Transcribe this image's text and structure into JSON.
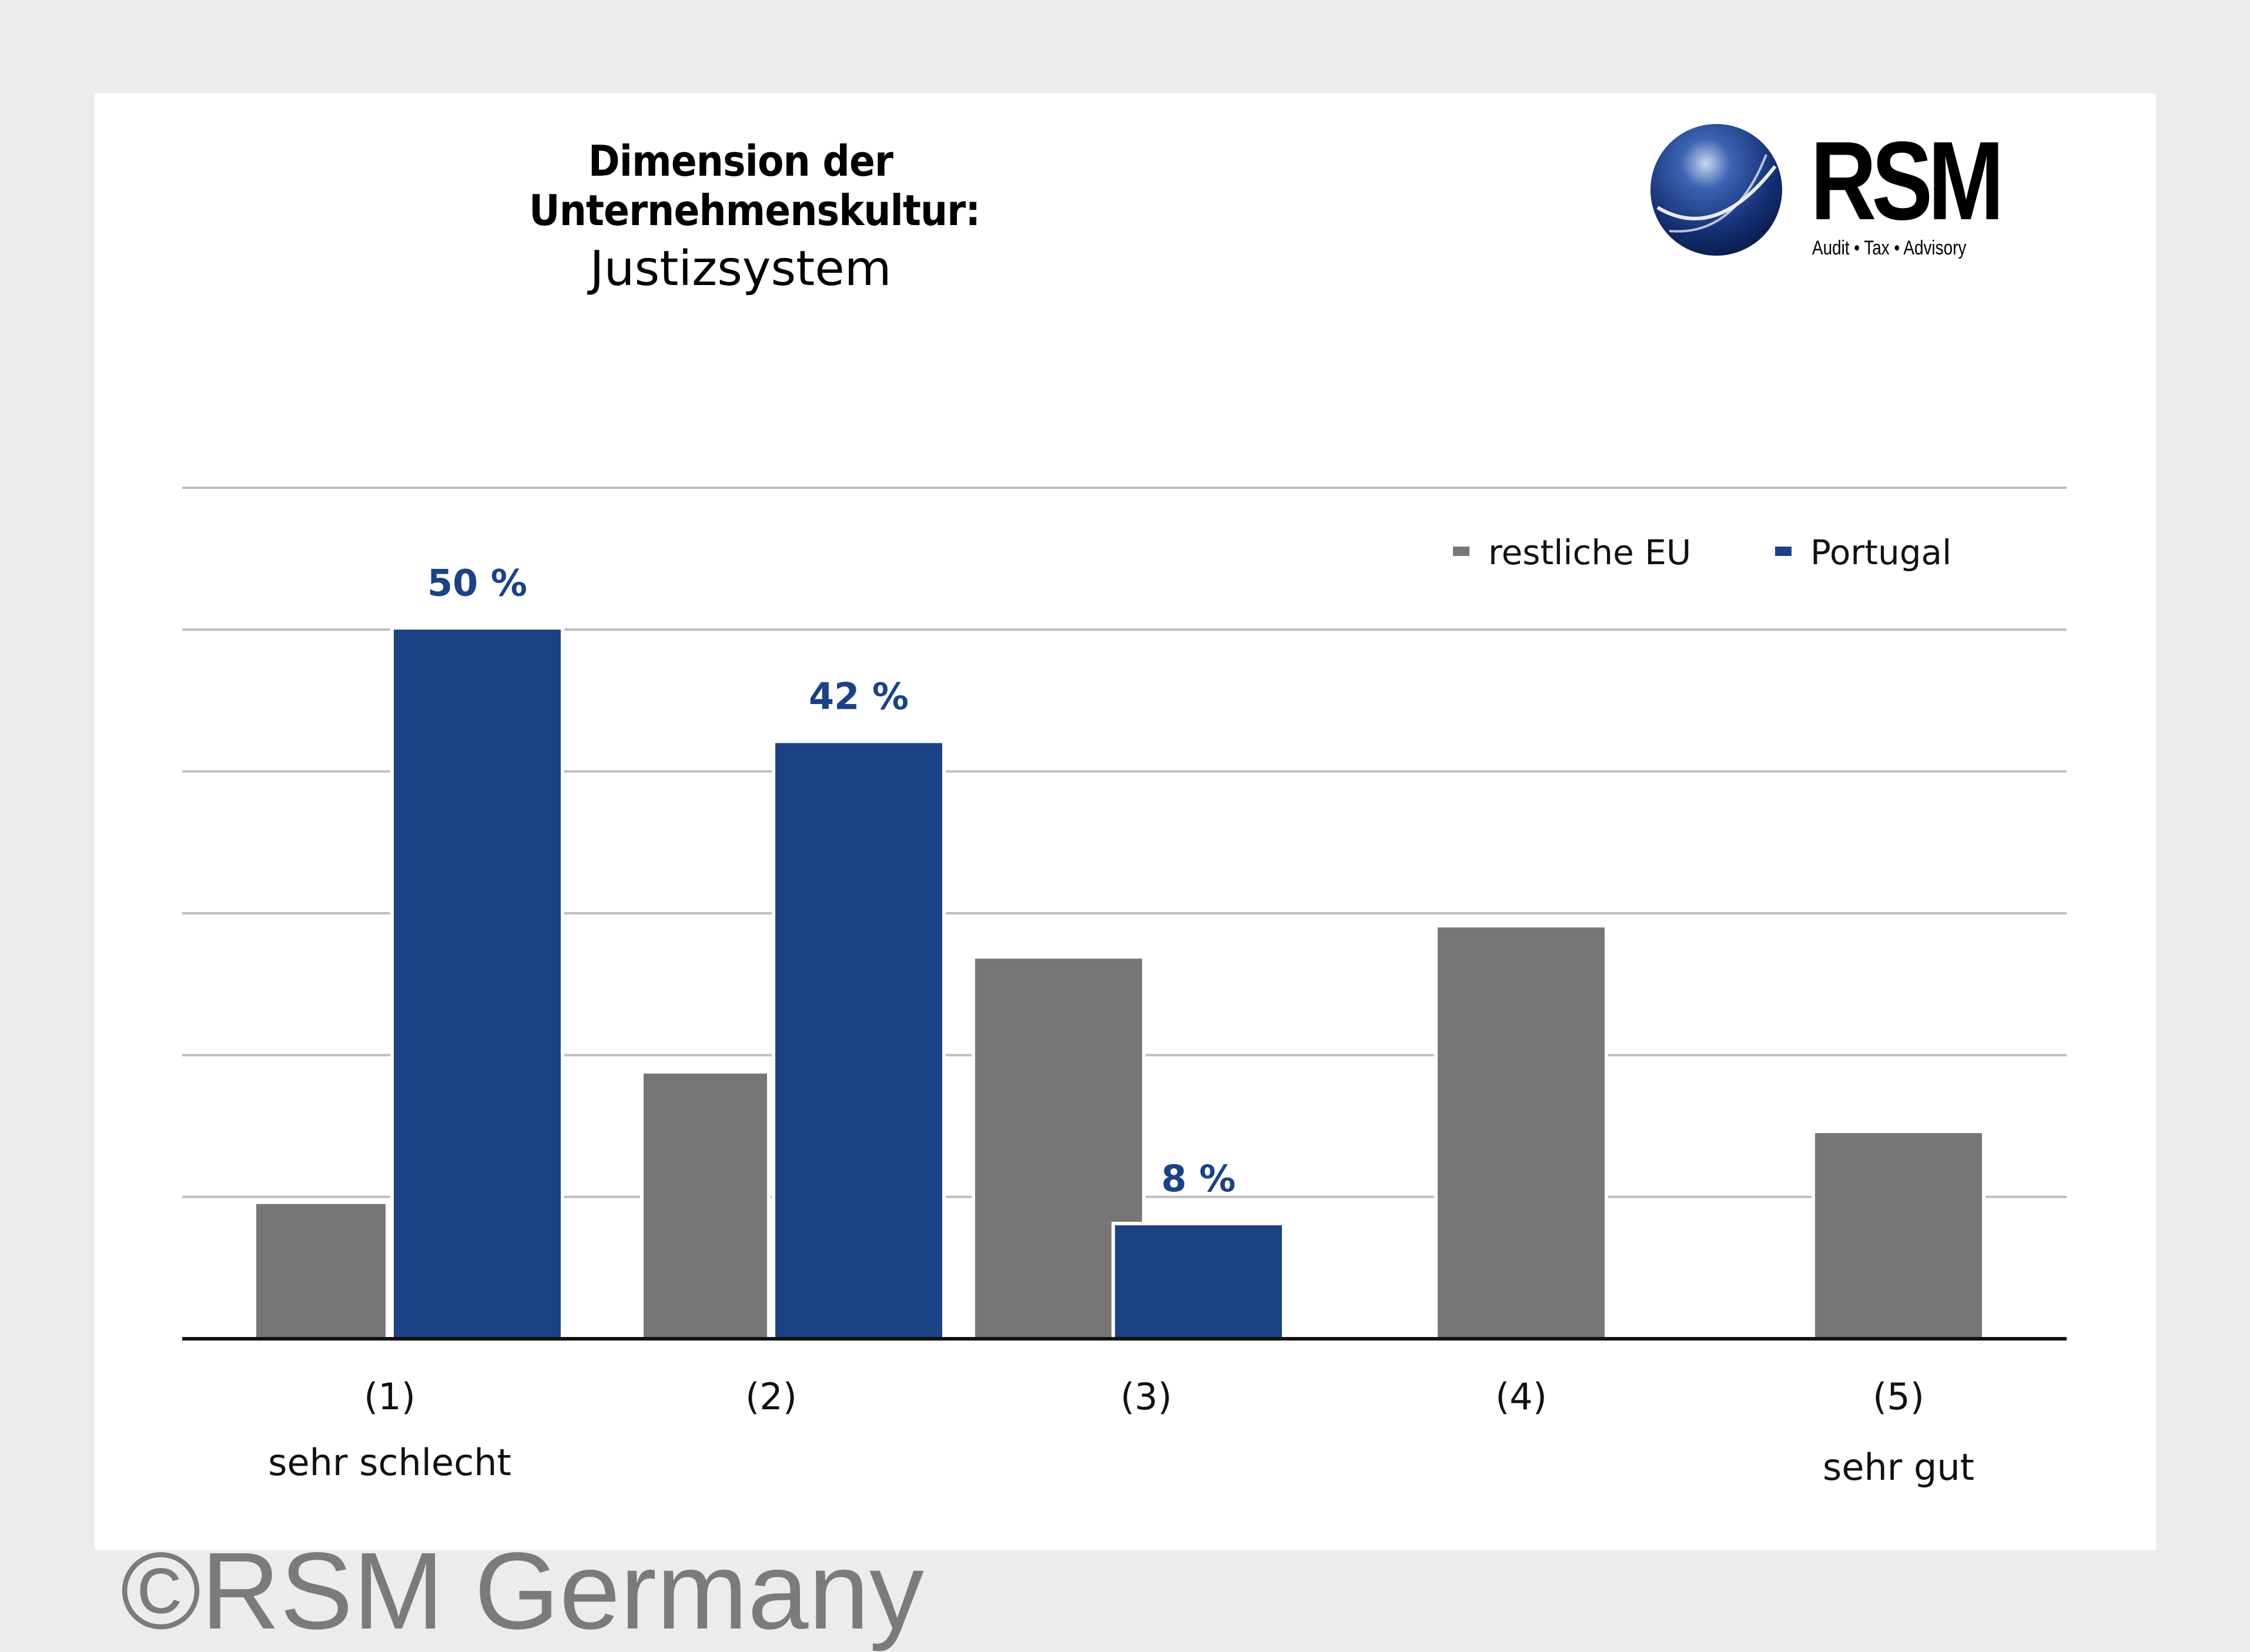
{
  "colors": {
    "page_background": "#ececec",
    "card_background": "#ffffff",
    "eu_series": "#777677",
    "portugal_series": "#1a4284",
    "gridline": "#bdbdbd",
    "axis": "#111111",
    "copyright": "#7b7b7b"
  },
  "logo": {
    "name": "RSM",
    "tagline": "Audit • Tax • Advisory",
    "icon": "globe-icon"
  },
  "copyright": "©RSM Germany",
  "chart_data": {
    "type": "bar",
    "title": "Dimension der Unternehmenskultur:",
    "subtitle": "Justizsystem",
    "categories": [
      "(1)",
      "(2)",
      "(3)",
      "(4)",
      "(5)"
    ],
    "category_sublabels": [
      "sehr schlecht",
      "",
      "",
      "",
      "sehr gut"
    ],
    "series": [
      {
        "name": "restliche EU",
        "color": "#777677",
        "values": [
          9.5,
          18.7,
          26.8,
          29,
          14.5
        ],
        "data_labels": [
          "",
          "",
          "",
          "",
          ""
        ]
      },
      {
        "name": "Portugal",
        "color": "#1a4284",
        "values": [
          50,
          42,
          8,
          0,
          0
        ],
        "data_labels": [
          "50 %",
          "42 %",
          "8 %",
          "",
          ""
        ]
      }
    ],
    "ylim": [
      0,
      60
    ],
    "y_gridlines": [
      10,
      20,
      30,
      40,
      50,
      60
    ],
    "grid": true,
    "legend": "top-right"
  }
}
